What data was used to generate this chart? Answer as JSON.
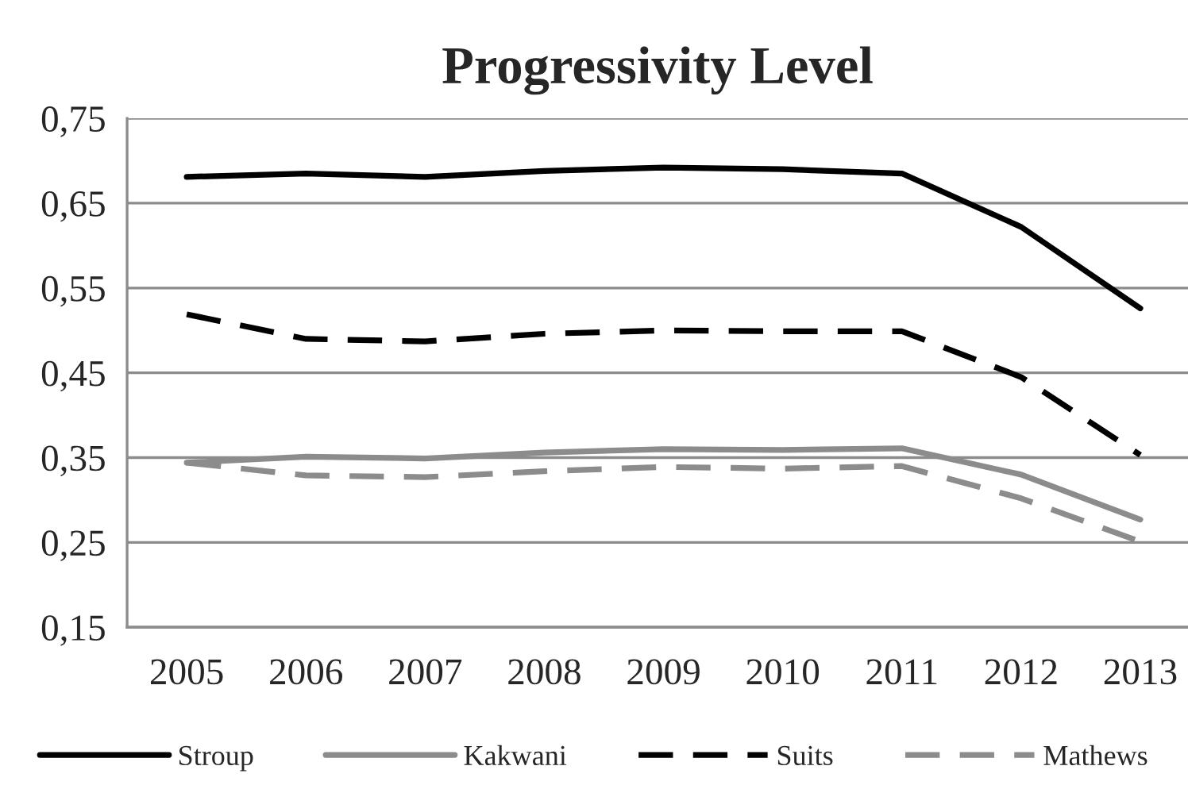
{
  "chart_data": {
    "type": "line",
    "title": "Progressivity Level",
    "categories": [
      "2005",
      "2006",
      "2007",
      "2008",
      "2009",
      "2010",
      "2011",
      "2012",
      "2013"
    ],
    "series": [
      {
        "name": "Stroup",
        "color": "#000000",
        "line_style": "solid",
        "values": [
          0.681,
          0.685,
          0.681,
          0.688,
          0.692,
          0.69,
          0.685,
          0.622,
          0.526
        ]
      },
      {
        "name": "Kakwani",
        "color": "#8c8c8c",
        "line_style": "solid",
        "values": [
          0.344,
          0.351,
          0.349,
          0.356,
          0.36,
          0.359,
          0.361,
          0.33,
          0.277
        ]
      },
      {
        "name": "Suits",
        "color": "#000000",
        "line_style": "dashed",
        "values": [
          0.519,
          0.49,
          0.487,
          0.496,
          0.5,
          0.499,
          0.499,
          0.445,
          0.353
        ]
      },
      {
        "name": "Mathews",
        "color": "#8c8c8c",
        "line_style": "dashed",
        "values": [
          0.344,
          0.329,
          0.327,
          0.334,
          0.339,
          0.337,
          0.34,
          0.302,
          0.251
        ]
      }
    ],
    "ylim": [
      0.15,
      0.75
    ],
    "yticks": [
      {
        "value": 0.15,
        "label": "0,15"
      },
      {
        "value": 0.25,
        "label": "0,25"
      },
      {
        "value": 0.35,
        "label": "0,35"
      },
      {
        "value": 0.45,
        "label": "0,45"
      },
      {
        "value": 0.55,
        "label": "0,55"
      },
      {
        "value": 0.65,
        "label": "0,65"
      },
      {
        "value": 0.75,
        "label": "0,75"
      }
    ],
    "grid": "y",
    "legend": "bottom",
    "marker": "none"
  }
}
